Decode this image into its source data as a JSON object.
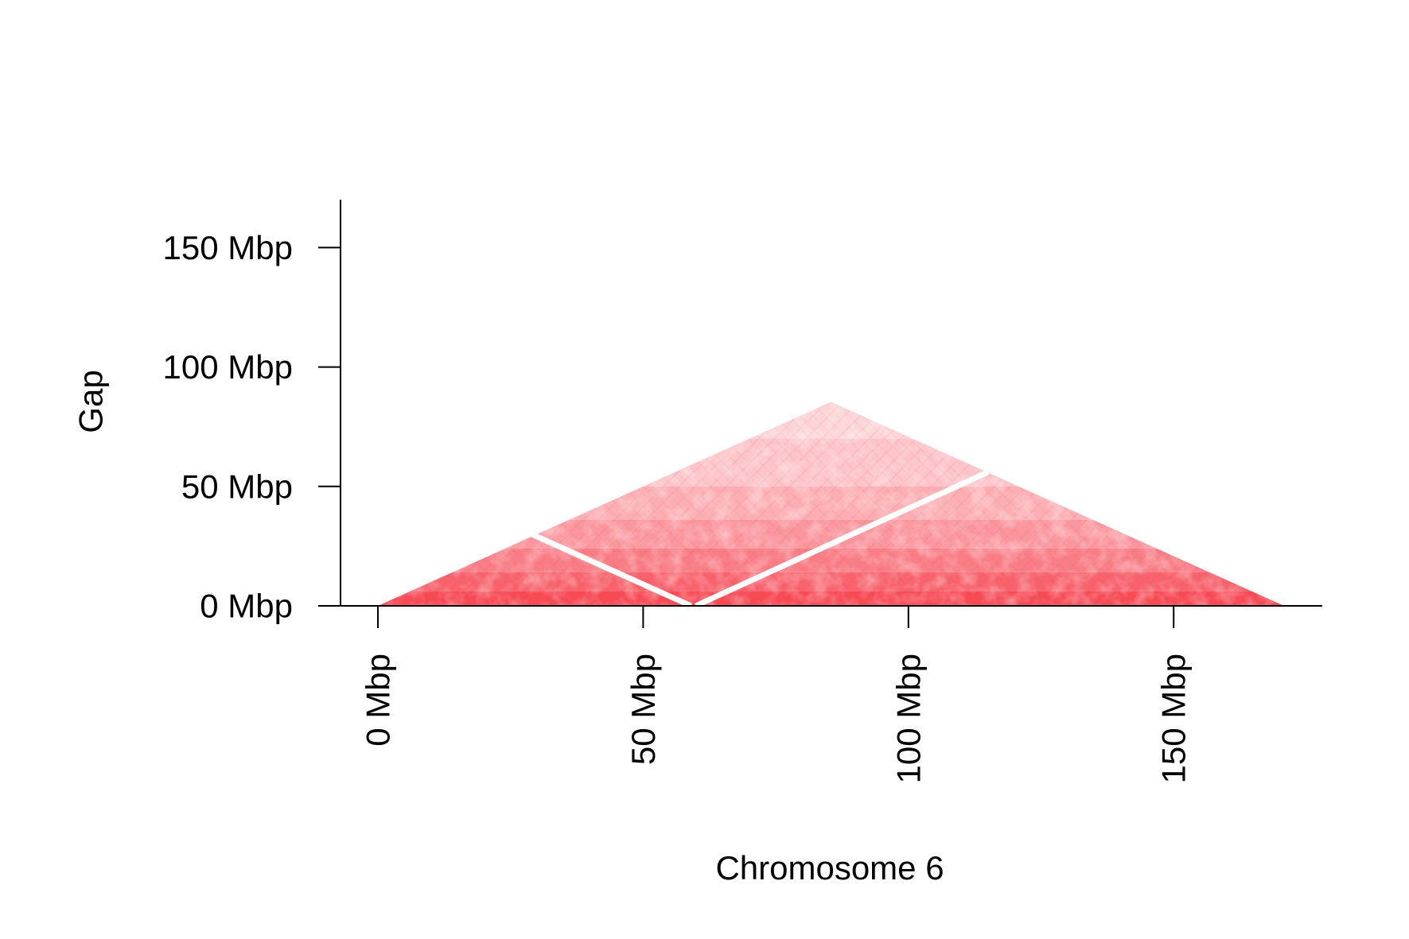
{
  "chart_data": {
    "type": "heatmap",
    "title": "",
    "xlabel": "Chromosome 6",
    "ylabel": "Gap",
    "x_ticks": [
      {
        "value": 0,
        "label": "0 Mbp"
      },
      {
        "value": 50,
        "label": "50 Mbp"
      },
      {
        "value": 100,
        "label": "100 Mbp"
      },
      {
        "value": 150,
        "label": "150 Mbp"
      }
    ],
    "y_ticks": [
      {
        "value": 0,
        "label": "0 Mbp"
      },
      {
        "value": 50,
        "label": "50 Mbp"
      },
      {
        "value": 100,
        "label": "100 Mbp"
      },
      {
        "value": 150,
        "label": "150 Mbp"
      }
    ],
    "xlim": [
      -7,
      178
    ],
    "ylim": [
      0,
      170
    ],
    "chromosome_length_mbp": 170.8,
    "centromere_gap_mbp": 59,
    "shape": "triangle",
    "color": "#f5404c",
    "background_color": "#ffffff",
    "grid": false,
    "legend": "none"
  }
}
